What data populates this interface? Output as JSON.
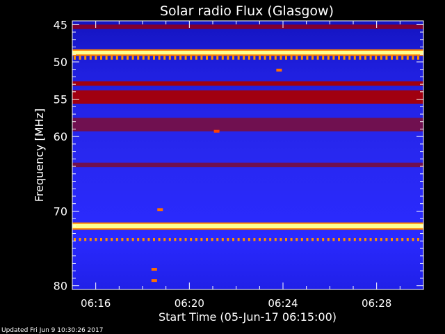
{
  "page": {
    "footer_text": "Updated Fri Jun  9 10:30:26 2017"
  },
  "chart_data": {
    "type": "heatmap",
    "title": "Solar radio Flux (Glasgow)",
    "xlabel": "Start Time (05-Jun-17 06:15:00)",
    "ylabel": "Frequency [MHz]",
    "x_unit": "time (UT)",
    "x_range": [
      "06:15:00",
      "06:30:00"
    ],
    "x_ticks": [
      {
        "label": "06:16",
        "time": "06:16"
      },
      {
        "label": "06:20",
        "time": "06:20"
      },
      {
        "label": "06:24",
        "time": "06:24"
      },
      {
        "label": "06:28",
        "time": "06:28"
      }
    ],
    "ylim": [
      44.5,
      80.5
    ],
    "y_axis_inverted": true,
    "y_ticks": [
      45,
      50,
      55,
      60,
      70,
      80
    ],
    "colormap": [
      "#0a0a60",
      "#1e1ef0",
      "#3030ff",
      "#8000a0",
      "#c00000",
      "#ff6000",
      "#ffff80",
      "#ffffff"
    ],
    "background_level": "blue (low flux)",
    "bands": [
      {
        "freq_start": 45.0,
        "freq_end": 45.6,
        "level": "dark red"
      },
      {
        "freq_start": 48.5,
        "freq_end": 49.0,
        "level": "white / saturated"
      },
      {
        "freq_start": 49.2,
        "freq_end": 49.7,
        "level": "orange (dashed)"
      },
      {
        "freq_start": 52.6,
        "freq_end": 53.2,
        "level": "red"
      },
      {
        "freq_start": 53.8,
        "freq_end": 55.6,
        "level": "red"
      },
      {
        "freq_start": 57.5,
        "freq_end": 59.3,
        "level": "purple-red"
      },
      {
        "freq_start": 63.5,
        "freq_end": 64.1,
        "level": "purple-red"
      },
      {
        "freq_start": 71.7,
        "freq_end": 72.3,
        "level": "white / saturated"
      },
      {
        "freq_start": 73.6,
        "freq_end": 74.0,
        "level": "orange (dashed)"
      }
    ],
    "spots": [
      {
        "time": "06:21:10",
        "freq": 59.3,
        "level": "orange-red"
      },
      {
        "time": "06:23:50",
        "freq": 51.1,
        "level": "orange"
      },
      {
        "time": "06:18:45",
        "freq": 69.8,
        "level": "orange"
      },
      {
        "time": "06:18:30",
        "freq": 77.8,
        "level": "orange"
      },
      {
        "time": "06:18:30",
        "freq": 79.3,
        "level": "orange"
      }
    ],
    "grid": false,
    "legend": "none"
  }
}
